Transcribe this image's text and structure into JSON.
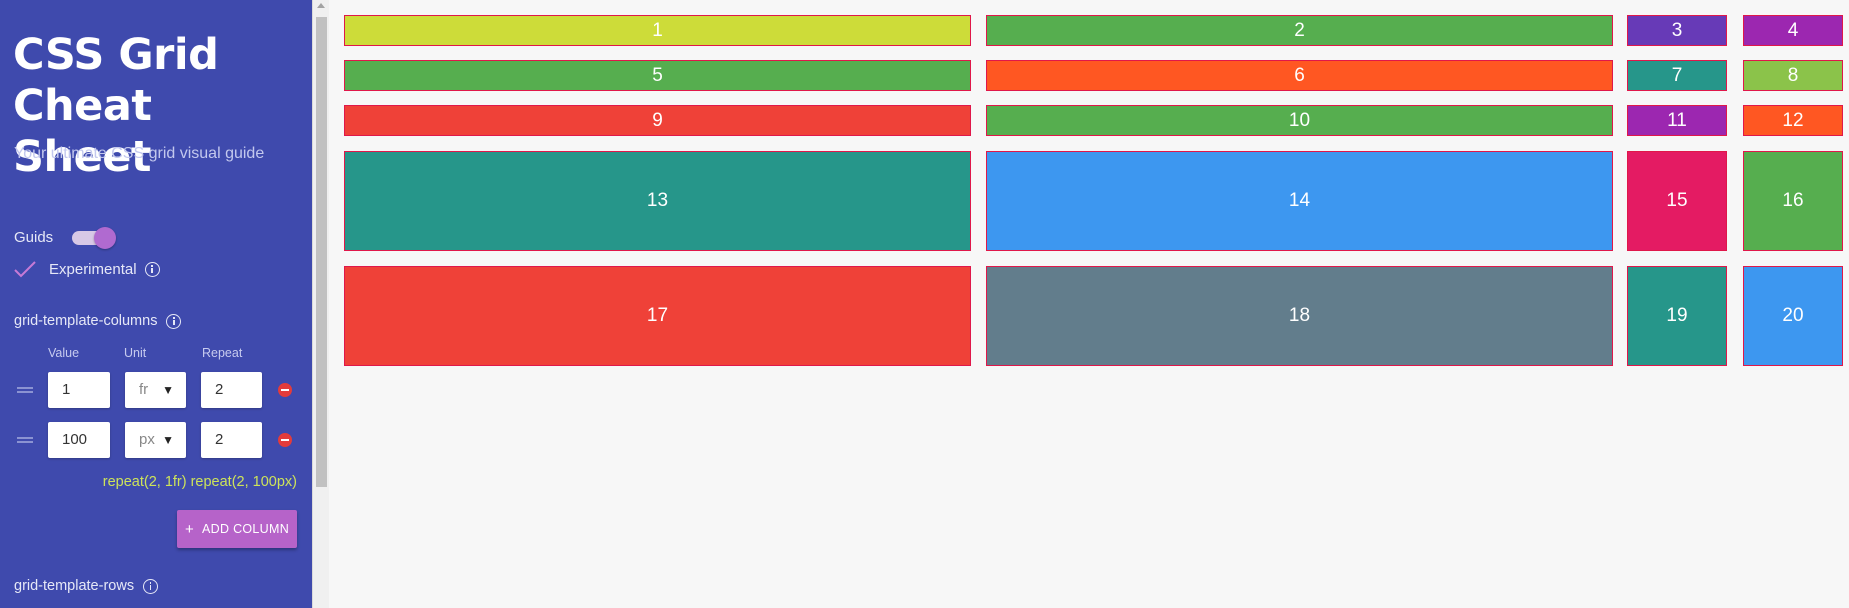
{
  "sidebar": {
    "title": "CSS Grid Cheat Sheet",
    "subtitle": "Your ultimate CSS grid visual guide",
    "guides_label": "Guids",
    "guides_on": true,
    "experimental_label": "Experimental",
    "columns_section_label": "grid-template-columns",
    "col_headers": {
      "value": "Value",
      "unit": "Unit",
      "repeat": "Repeat"
    },
    "column_rows": [
      {
        "value": "1",
        "unit": "fr",
        "repeat": "2"
      },
      {
        "value": "100",
        "unit": "px",
        "repeat": "2"
      }
    ],
    "columns_summary": "repeat(2, 1fr) repeat(2, 100px)",
    "add_column_label": "ADD COLUMN",
    "rows_section_label": "grid-template-rows"
  },
  "grid_items": [
    {
      "label": "1",
      "color": "#cddc39"
    },
    {
      "label": "2",
      "color": "#56ae4f"
    },
    {
      "label": "3",
      "color": "#673ab7"
    },
    {
      "label": "4",
      "color": "#9c27b0"
    },
    {
      "label": "5",
      "color": "#56ae4f"
    },
    {
      "label": "6",
      "color": "#ff5722"
    },
    {
      "label": "7",
      "color": "#26968a"
    },
    {
      "label": "8",
      "color": "#8bc34a"
    },
    {
      "label": "9",
      "color": "#ef4138"
    },
    {
      "label": "10",
      "color": "#56ae4f"
    },
    {
      "label": "11",
      "color": "#9c27b0"
    },
    {
      "label": "12",
      "color": "#ff5722"
    },
    {
      "label": "13",
      "color": "#26968a"
    },
    {
      "label": "14",
      "color": "#3d97f0"
    },
    {
      "label": "15",
      "color": "#e41b63"
    },
    {
      "label": "16",
      "color": "#56ae4f"
    },
    {
      "label": "17",
      "color": "#ef4138"
    },
    {
      "label": "18",
      "color": "#627d8c"
    },
    {
      "label": "19",
      "color": "#26968a"
    },
    {
      "label": "20",
      "color": "#3d97f0"
    }
  ]
}
